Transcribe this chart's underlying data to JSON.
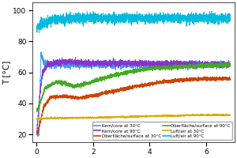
{
  "ylabel": "T [°C]",
  "xlim": [
    -0.15,
    7.0
  ],
  "ylim": [
    15,
    105
  ],
  "yticks": [
    20,
    40,
    60,
    80,
    100
  ],
  "xticks": [
    0,
    2,
    4,
    6
  ],
  "legend": [
    {
      "label": "Kern/core at 30°C",
      "color": "#4499ee"
    },
    {
      "label": "Kern/core at 90°C",
      "color": "#8833cc"
    },
    {
      "label": "Oberfläche/surface at 30°C",
      "color": "#cc4400"
    },
    {
      "label": "Oberfläche/surface at 90°C",
      "color": "#44aa22"
    },
    {
      "label": "Luft/air at 30°C",
      "color": "#ddaa00"
    },
    {
      "label": "Luft/air at 90°C",
      "color": "#00bbdd"
    }
  ]
}
